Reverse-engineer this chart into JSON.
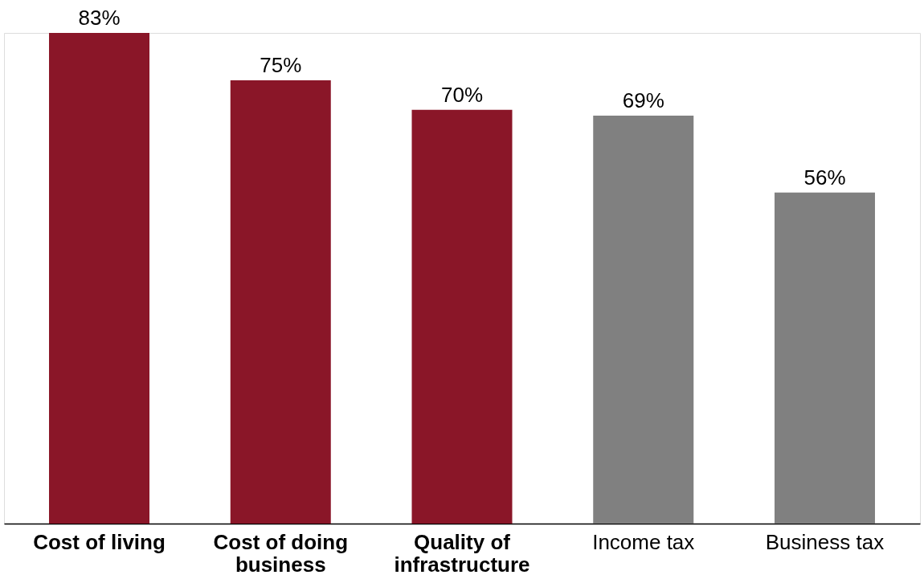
{
  "chart_data": {
    "type": "bar",
    "categories": [
      "Cost of living",
      "Cost of doing business",
      "Quality of infrastructure",
      "Income tax",
      "Business tax"
    ],
    "values": [
      83,
      75,
      70,
      69,
      56
    ],
    "colors": [
      "#8a1628",
      "#8a1628",
      "#8a1628",
      "#808080",
      "#808080"
    ],
    "value_labels": [
      "83%",
      "75%",
      "70%",
      "69%",
      "56%"
    ]
  }
}
